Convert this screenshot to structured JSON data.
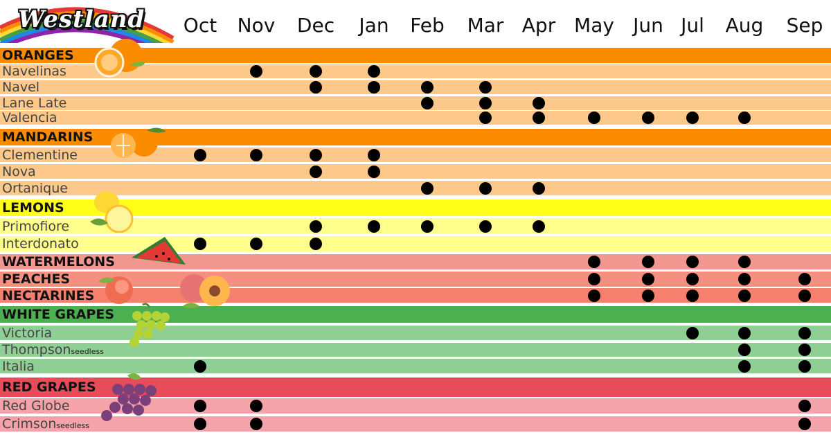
{
  "brand": "Westland",
  "chart_data": {
    "type": "table",
    "months": [
      "Oct",
      "Nov",
      "Dec",
      "Jan",
      "Feb",
      "Mar",
      "Apr",
      "May",
      "Jun",
      "Jul",
      "Aug",
      "Sep"
    ],
    "rows": [
      {
        "name": "ORANGES",
        "category": true,
        "color": "#fb8c00",
        "months": []
      },
      {
        "name": "Navelinas",
        "color": "#fdc98a",
        "months": [
          "Nov",
          "Dec",
          "Jan"
        ]
      },
      {
        "name": "Navel",
        "color": "#fdc98a",
        "months": [
          "Dec",
          "Jan",
          "Feb",
          "Mar"
        ]
      },
      {
        "name": "Lane Late",
        "color": "#fdc98a",
        "months": [
          "Feb",
          "Mar",
          "Apr"
        ]
      },
      {
        "name": "Valencia",
        "color": "#fdc98a",
        "months": [
          "Mar",
          "Apr",
          "May",
          "Jun",
          "Jul",
          "Aug"
        ]
      },
      {
        "name": "MANDARINS",
        "category": true,
        "color": "#fb8c00",
        "months": []
      },
      {
        "name": "Clementine",
        "color": "#fdc98a",
        "months": [
          "Oct",
          "Nov",
          "Dec",
          "Jan"
        ]
      },
      {
        "name": "Nova",
        "color": "#fdc98a",
        "months": [
          "Dec",
          "Jan"
        ]
      },
      {
        "name": "Ortanique",
        "color": "#fdc98a",
        "months": [
          "Feb",
          "Mar",
          "Apr"
        ]
      },
      {
        "name": "LEMONS",
        "category": true,
        "color": "#ffff19",
        "months": []
      },
      {
        "name": "Primofiore",
        "color": "#ffff8c",
        "months": [
          "Dec",
          "Jan",
          "Feb",
          "Mar",
          "Apr"
        ]
      },
      {
        "name": "Interdonato",
        "color": "#ffff8c",
        "months": [
          "Oct",
          "Nov",
          "Dec"
        ]
      },
      {
        "name": "WATERMELONS",
        "category": true,
        "color": "#f1978f",
        "months": [
          "May",
          "Jun",
          "Jul",
          "Aug"
        ]
      },
      {
        "name": "PEACHES",
        "category": true,
        "color": "#f58f7f",
        "months": [
          "May",
          "Jun",
          "Jul",
          "Aug",
          "Sep"
        ]
      },
      {
        "name": "NECTARINES",
        "category": true,
        "color": "#f5806e",
        "months": [
          "May",
          "Jun",
          "Jul",
          "Aug",
          "Sep"
        ]
      },
      {
        "name": "WHITE GRAPES",
        "category": true,
        "color": "#4caf50",
        "months": []
      },
      {
        "name": "Victoria",
        "color": "#8fce94",
        "months": [
          "Jul",
          "Aug",
          "Sep"
        ]
      },
      {
        "name": "Thompson",
        "note": "seedless",
        "color": "#8fce94",
        "months": [
          "Aug",
          "Sep"
        ]
      },
      {
        "name": "Italia",
        "color": "#8fce94",
        "months": [
          "Oct",
          "Aug",
          "Sep"
        ]
      },
      {
        "name": "RED GRAPES",
        "category": true,
        "color": "#e84b5a",
        "months": []
      },
      {
        "name": "Red Globe",
        "color": "#f5a3aa",
        "months": [
          "Oct",
          "Nov",
          "Sep"
        ]
      },
      {
        "name": "Crimson",
        "note": "seedless",
        "color": "#f5a3aa",
        "months": [
          "Oct",
          "Nov",
          "Sep"
        ]
      }
    ]
  }
}
